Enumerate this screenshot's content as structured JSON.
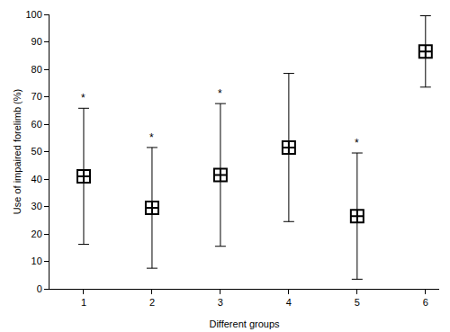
{
  "chart_data": {
    "type": "scatter",
    "x_label": "Different groups",
    "y_label": "Use of impaired forelimb (%)",
    "x": [
      1,
      2,
      3,
      4,
      5,
      6
    ],
    "values": [
      41,
      29.5,
      41.5,
      51.5,
      26.5,
      86.5
    ],
    "errors": [
      24.8,
      22,
      26,
      27,
      23,
      13
    ],
    "annotations": [
      "*",
      "*",
      "*",
      null,
      "*",
      null
    ],
    "color": "#000000",
    "marker": "square-cross-open",
    "xlim": [
      0.5,
      6.2
    ],
    "xticks": [
      1,
      2,
      3,
      4,
      5,
      6
    ],
    "ylim": [
      0,
      100
    ],
    "yticks": [
      0,
      10,
      20,
      30,
      40,
      50,
      60,
      70,
      80,
      90,
      100
    ],
    "grid": false
  }
}
